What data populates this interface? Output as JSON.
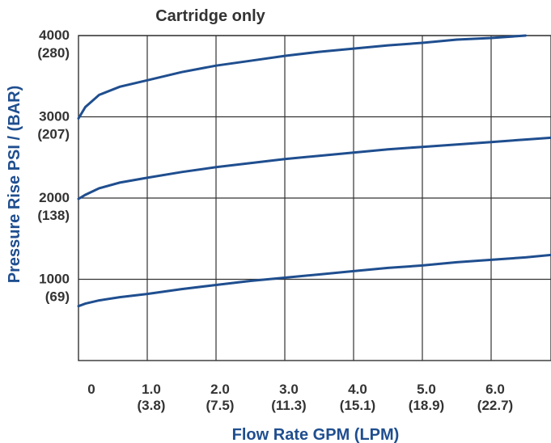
{
  "chart_data": {
    "type": "line",
    "title": "Cartridge only",
    "xlabel": "Flow Rate GPM (LPM)",
    "ylabel": "Pressure Rise PSI / (BAR)",
    "xlim": [
      0,
      7
    ],
    "ylim": [
      0,
      4000
    ],
    "grid": true,
    "x_ticks": [
      {
        "value": 0,
        "label": "0",
        "sublabel": ""
      },
      {
        "value": 1,
        "label": "1.0",
        "sublabel": "(3.8)"
      },
      {
        "value": 2,
        "label": "2.0",
        "sublabel": "(7.5)"
      },
      {
        "value": 3,
        "label": "3.0",
        "sublabel": "(11.3)"
      },
      {
        "value": 4,
        "label": "4.0",
        "sublabel": "(15.1)"
      },
      {
        "value": 5,
        "label": "5.0",
        "sublabel": "(18.9)"
      },
      {
        "value": 6,
        "label": "6.0",
        "sublabel": "(22.7)"
      }
    ],
    "y_ticks": [
      {
        "value": 4000,
        "label": "4000",
        "sublabel": "(280)"
      },
      {
        "value": 3000,
        "label": "3000",
        "sublabel": "(207)"
      },
      {
        "value": 2000,
        "label": "2000",
        "sublabel": "(138)"
      },
      {
        "value": 1000,
        "label": "1000",
        "sublabel": "(69)"
      }
    ],
    "series_color": "#1f4e8f",
    "series": [
      {
        "x": [
          0,
          0.1,
          0.3,
          0.6,
          1.0,
          1.5,
          2.0,
          2.5,
          3.0,
          3.5,
          4.0,
          4.5,
          5.0,
          5.5,
          6.0,
          6.5
        ],
        "y": [
          2980,
          3120,
          3270,
          3370,
          3450,
          3550,
          3630,
          3690,
          3750,
          3800,
          3840,
          3880,
          3910,
          3950,
          3970,
          4000
        ]
      },
      {
        "x": [
          0,
          0.1,
          0.3,
          0.6,
          1.0,
          1.5,
          2.0,
          2.5,
          3.0,
          3.5,
          4.0,
          4.5,
          5.0,
          5.5,
          6.0,
          6.5,
          7.0
        ],
        "y": [
          1990,
          2040,
          2120,
          2190,
          2250,
          2320,
          2380,
          2430,
          2480,
          2520,
          2560,
          2600,
          2630,
          2660,
          2690,
          2720,
          2750
        ]
      },
      {
        "x": [
          0,
          0.1,
          0.3,
          0.6,
          1.0,
          1.5,
          2.0,
          2.5,
          3.0,
          3.5,
          4.0,
          4.5,
          5.0,
          5.5,
          6.0,
          6.5,
          7.0
        ],
        "y": [
          670,
          700,
          740,
          780,
          820,
          880,
          930,
          980,
          1020,
          1060,
          1100,
          1140,
          1170,
          1210,
          1240,
          1270,
          1310
        ]
      }
    ]
  }
}
